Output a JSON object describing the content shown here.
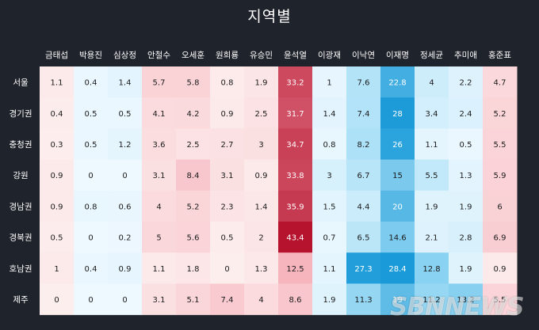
{
  "title": "지역별",
  "watermark": "SBNNEWS",
  "colors": {
    "background": "#1f232b",
    "header_text": "#ffffff",
    "cell_text": "#1a1a1a",
    "low": "#eef8ff",
    "red_high": "#b6132e",
    "blue_high": "#1a9ad8"
  },
  "chart_data": {
    "type": "heatmap",
    "title": "지역별",
    "columns": [
      "금태섭",
      "박용진",
      "심상정",
      "안철수",
      "오세훈",
      "원희룡",
      "유승민",
      "윤석열",
      "이광재",
      "이낙연",
      "이재명",
      "정세균",
      "추미애",
      "홍준표"
    ],
    "rows": [
      "서울",
      "경기권",
      "충청권",
      "강원",
      "경남권",
      "경북권",
      "호남권",
      "제주"
    ],
    "values": [
      [
        1.1,
        0.4,
        1.4,
        5.7,
        5.8,
        0.8,
        1.9,
        33.2,
        1,
        7.6,
        22.8,
        4,
        2.2,
        4.7
      ],
      [
        0.4,
        0.5,
        0.5,
        4.1,
        4.2,
        0.9,
        2.5,
        31.7,
        1.4,
        7.4,
        28,
        3.4,
        2.4,
        5.2
      ],
      [
        0.3,
        0.5,
        1.2,
        3.6,
        2.5,
        2.7,
        3,
        34.7,
        0.8,
        8.2,
        26,
        1.1,
        0.5,
        5.5
      ],
      [
        0.9,
        0,
        0,
        3.1,
        8.4,
        3.1,
        0.9,
        33.8,
        3,
        6.7,
        15,
        5.5,
        1.3,
        5.9
      ],
      [
        0.9,
        0.8,
        0.6,
        4,
        5.2,
        2.3,
        1.4,
        35.9,
        1.5,
        4.4,
        20,
        1.9,
        1.9,
        6
      ],
      [
        0.5,
        0,
        0.2,
        5,
        5.6,
        0.5,
        2,
        43.4,
        0.7,
        6.5,
        14.6,
        2.1,
        2.8,
        6.9
      ],
      [
        1,
        0.4,
        0.9,
        1.1,
        1.8,
        0,
        1.3,
        12.5,
        1.1,
        27.3,
        28.4,
        12.8,
        1.9,
        0.9
      ],
      [
        0,
        0,
        0,
        3.1,
        5.1,
        7.4,
        4,
        8.6,
        1.9,
        11.3,
        19,
        11.2,
        13.2,
        5.5
      ]
    ],
    "column_tint": [
      "red",
      "blue",
      "blue",
      "red",
      "red",
      "red",
      "red",
      "red",
      "blue",
      "blue",
      "blue",
      "blue",
      "blue",
      "red"
    ]
  }
}
